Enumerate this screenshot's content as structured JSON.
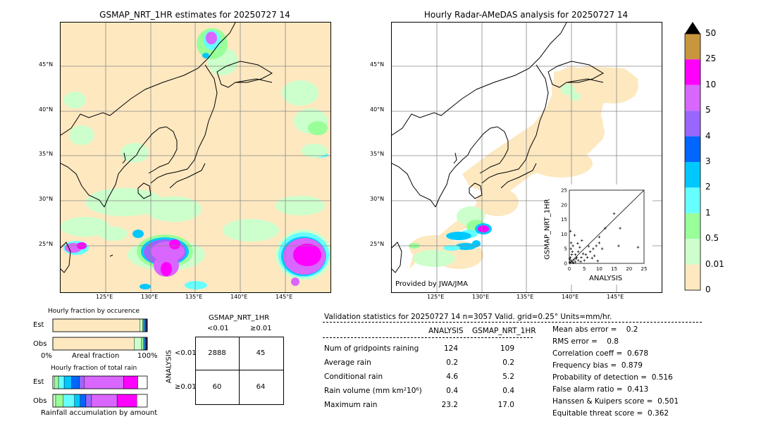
{
  "left_map": {
    "title": "GSMAP_NRT_1HR estimates for 20250727 14",
    "lat_labels": [
      "45°N",
      "40°N",
      "35°N",
      "30°N",
      "25°N"
    ],
    "lon_labels": [
      "125°E",
      "130°E",
      "135°E",
      "140°E",
      "145°E"
    ]
  },
  "right_map": {
    "title": "Hourly Radar-AMeDAS analysis for 20250727 14",
    "lat_labels": [
      "45°N",
      "40°N",
      "35°N",
      "30°N",
      "25°N"
    ],
    "lon_labels": [
      "125°E",
      "130°E",
      "135°E",
      "140°E",
      "145°E"
    ],
    "credit": "Provided by JWA/JMA"
  },
  "colorbar": {
    "labels": [
      "50",
      "25",
      "10",
      "5",
      "4",
      "3",
      "2",
      "1",
      "0.5",
      "0.01",
      "0"
    ],
    "colors": [
      "#c8963c",
      "#ff00ff",
      "#d966ff",
      "#9966ff",
      "#0066ff",
      "#00c8ff",
      "#66ffff",
      "#99ff99",
      "#ccffcc",
      "#fde8c0"
    ]
  },
  "chart_data": [
    {
      "type": "scatter",
      "xlabel": "ANALYSIS",
      "ylabel": "GSMAP_NRT_1HR",
      "xlim": [
        0,
        25
      ],
      "ylim": [
        0,
        25
      ],
      "xticks": [
        "0",
        "5",
        "10",
        "15",
        "20",
        "25"
      ],
      "yticks": [
        "0",
        "5",
        "10",
        "15",
        "20",
        "25"
      ],
      "points": [
        [
          0.2,
          0.3
        ],
        [
          0.5,
          1
        ],
        [
          1,
          0.5
        ],
        [
          0.3,
          2
        ],
        [
          1.5,
          1.2
        ],
        [
          2,
          0.5
        ],
        [
          0.8,
          3
        ],
        [
          3,
          1
        ],
        [
          0.5,
          5
        ],
        [
          1,
          4
        ],
        [
          2,
          3
        ],
        [
          1.2,
          6
        ],
        [
          0.6,
          7
        ],
        [
          2.5,
          2
        ],
        [
          3,
          4
        ],
        [
          4,
          2
        ],
        [
          5,
          1
        ],
        [
          5.5,
          3
        ],
        [
          6,
          2
        ],
        [
          7,
          4
        ],
        [
          8,
          5
        ],
        [
          9,
          6
        ],
        [
          10,
          7
        ],
        [
          11,
          5
        ],
        [
          12,
          12
        ],
        [
          10,
          9
        ],
        [
          15,
          17
        ],
        [
          17,
          12
        ],
        [
          3.5,
          5.5
        ],
        [
          4.2,
          7.8
        ],
        [
          1.8,
          9.6
        ],
        [
          0.4,
          11
        ],
        [
          0.2,
          0.1
        ],
        [
          0.1,
          1.5
        ],
        [
          1.3,
          0.2
        ],
        [
          2.2,
          1.6
        ],
        [
          3.8,
          0.6
        ],
        [
          4.6,
          3.3
        ],
        [
          6.5,
          5.8
        ],
        [
          7.6,
          1.8
        ],
        [
          8.4,
          2.6
        ],
        [
          2.8,
          6.8
        ],
        [
          16.5,
          6
        ],
        [
          23,
          5.5
        ],
        [
          9.5,
          0.8
        ]
      ]
    },
    {
      "type": "bar",
      "title": "Hourly fraction by occurence",
      "categories": [
        "Est",
        "Obs"
      ],
      "xlabel": "Areal fraction",
      "xticks": [
        "0%",
        "100%"
      ],
      "series": [
        {
          "values": [
            0.92,
            0.86
          ],
          "color": "#fde8c0"
        },
        {
          "values": [
            0.03,
            0.08
          ],
          "color": "#ccffcc"
        },
        {
          "values": [
            0.01,
            0.02
          ],
          "color": "#99ff99"
        },
        {
          "values": [
            0.01,
            0.01
          ],
          "color": "#66ffff"
        },
        {
          "values": [
            0.01,
            0.01
          ],
          "color": "#0066ff"
        },
        {
          "values": [
            0.01,
            0.01
          ],
          "color": "#9966ff"
        },
        {
          "values": [
            0.01,
            0.01
          ],
          "color": "#000000"
        }
      ]
    },
    {
      "type": "bar",
      "title": "Hourly fraction of total rain",
      "categories": [
        "Est",
        "Obs"
      ],
      "xlabel": "Rainfall accumulation by amount",
      "series": [
        {
          "values": [
            0.02,
            0.03
          ],
          "color": "#ccffcc"
        },
        {
          "values": [
            0.04,
            0.08
          ],
          "color": "#99ff99"
        },
        {
          "values": [
            0.06,
            0.12
          ],
          "color": "#66ffff"
        },
        {
          "values": [
            0.08,
            0.06
          ],
          "color": "#00c8ff"
        },
        {
          "values": [
            0.08,
            0.06
          ],
          "color": "#0066ff"
        },
        {
          "values": [
            0.05,
            0.06
          ],
          "color": "#9966ff"
        },
        {
          "values": [
            0.42,
            0.27
          ],
          "color": "#d966ff"
        },
        {
          "values": [
            0.15,
            0.21
          ],
          "color": "#ff00ff"
        }
      ]
    },
    {
      "type": "table",
      "title": "GSMAP_NRT_1HR",
      "col_headers": [
        "<0.01",
        "≥0.01"
      ],
      "row_label": "ANALYSIS",
      "row_headers": [
        "<0.01",
        "≥0.01"
      ],
      "cells": [
        [
          "2888",
          "45"
        ],
        [
          "60",
          "64"
        ]
      ]
    }
  ],
  "validation": {
    "header": "Validation statistics for 20250727 14  n=3057 Valid. grid=0.25° Units=mm/hr.",
    "col_analysis": "ANALYSIS",
    "col_gsmap": "GSMAP_NRT_1HR",
    "rows": [
      {
        "label": "Num of gridpoints raining",
        "analysis": "124",
        "gsmap": "109"
      },
      {
        "label": "Average rain",
        "analysis": "0.2",
        "gsmap": "0.2"
      },
      {
        "label": "Conditional rain",
        "analysis": "4.6",
        "gsmap": "5.2"
      },
      {
        "label": "Rain volume (mm km²10⁶)",
        "analysis": "0.4",
        "gsmap": "0.4"
      },
      {
        "label": "Maximum rain",
        "analysis": "23.2",
        "gsmap": "17.0"
      }
    ],
    "scores": [
      "Mean abs error =    0.2",
      "RMS error =    0.8",
      "Correlation coeff =  0.678",
      "Frequency bias =  0.879",
      "Probability of detection =  0.516",
      "False alarm ratio =  0.413",
      "Hanssen & Kuipers score =  0.501",
      "Equitable threat score =  0.362"
    ]
  }
}
